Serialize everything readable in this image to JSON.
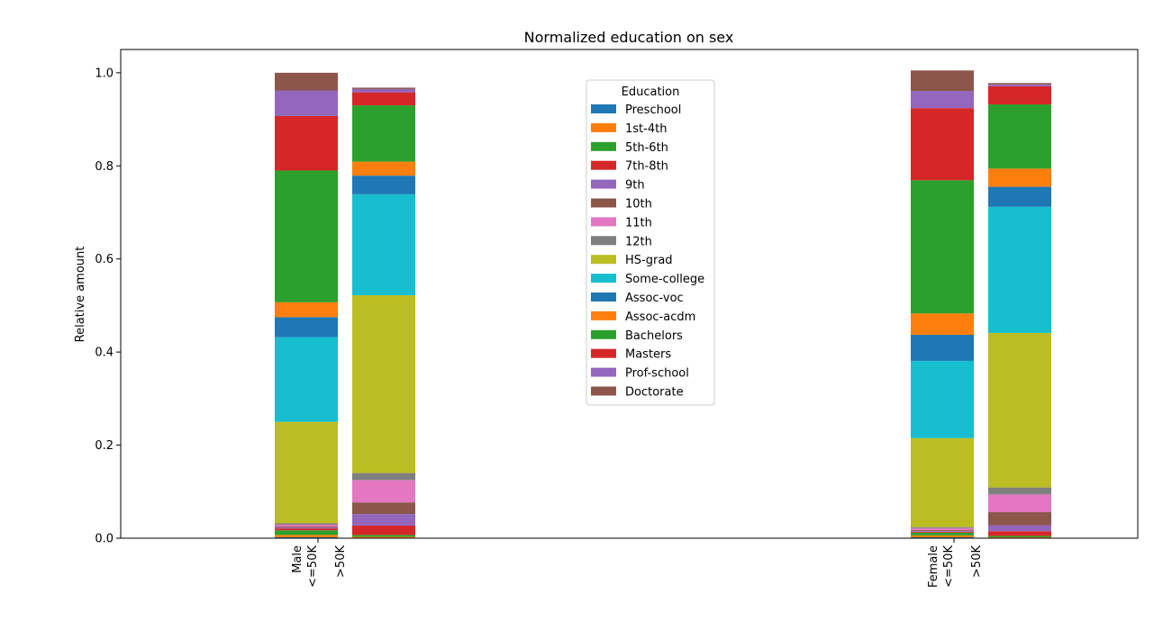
{
  "chart_data": {
    "type": "bar",
    "stacked": true,
    "title": "Normalized education on sex",
    "ylabel": "Relative amount",
    "ylim": [
      0,
      1.05
    ],
    "yticks": [
      "0.0",
      "0.2",
      "0.4",
      "0.6",
      "0.8",
      "1.0"
    ],
    "groups": [
      {
        "name": "Male",
        "subcategories": [
          "<=50K",
          ">50K"
        ]
      },
      {
        "name": "Female",
        "subcategories": [
          "<=50K",
          ">50K"
        ]
      }
    ],
    "legend": {
      "title": "Education",
      "placement": "top-center"
    },
    "series": [
      {
        "name": "Preschool",
        "color": "#1f77b4",
        "values": [
          [
            0.002,
            0.001
          ],
          [
            0.002,
            0.001
          ]
        ]
      },
      {
        "name": "1st-4th",
        "color": "#ff7f0e",
        "values": [
          [
            0.005,
            0.002
          ],
          [
            0.004,
            0.001
          ]
        ]
      },
      {
        "name": "5th-6th",
        "color": "#2ca02c",
        "values": [
          [
            0.01,
            0.004
          ],
          [
            0.006,
            0.003
          ]
        ]
      },
      {
        "name": "7th-8th",
        "color": "#d62728",
        "values": [
          [
            0.004,
            0.02
          ],
          [
            0.002,
            0.01
          ]
        ]
      },
      {
        "name": "9th",
        "color": "#9467bd",
        "values": [
          [
            0.002,
            0.025
          ],
          [
            0.002,
            0.013
          ]
        ]
      },
      {
        "name": "10th",
        "color": "#8c564b",
        "values": [
          [
            0.002,
            0.025
          ],
          [
            0.002,
            0.028
          ]
        ]
      },
      {
        "name": "11th",
        "color": "#e377c2",
        "values": [
          [
            0.004,
            0.048
          ],
          [
            0.004,
            0.038
          ]
        ]
      },
      {
        "name": "12th",
        "color": "#7f7f7f",
        "values": [
          [
            0.003,
            0.015
          ],
          [
            0.002,
            0.015
          ]
        ]
      },
      {
        "name": "HS-grad",
        "color": "#bcbd22",
        "values": [
          [
            0.218,
            0.382
          ],
          [
            0.191,
            0.332
          ]
        ]
      },
      {
        "name": "Some-college",
        "color": "#17becf",
        "values": [
          [
            0.182,
            0.217
          ],
          [
            0.166,
            0.271
          ]
        ]
      },
      {
        "name": "Assoc-voc",
        "color": "#1f77b4",
        "values": [
          [
            0.043,
            0.04
          ],
          [
            0.056,
            0.043
          ]
        ]
      },
      {
        "name": "Assoc-acdm",
        "color": "#ff7f0e",
        "values": [
          [
            0.032,
            0.03
          ],
          [
            0.046,
            0.039
          ]
        ]
      },
      {
        "name": "Bachelors",
        "color": "#2ca02c",
        "values": [
          [
            0.283,
            0.121
          ],
          [
            0.286,
            0.138
          ]
        ]
      },
      {
        "name": "Masters",
        "color": "#d62728",
        "values": [
          [
            0.117,
            0.028
          ],
          [
            0.155,
            0.039
          ]
        ]
      },
      {
        "name": "Prof-school",
        "color": "#9467bd",
        "values": [
          [
            0.055,
            0.007
          ],
          [
            0.037,
            0.004
          ]
        ]
      },
      {
        "name": "Doctorate",
        "color": "#8c564b",
        "values": [
          [
            0.038,
            0.003
          ],
          [
            0.044,
            0.003
          ]
        ]
      }
    ]
  }
}
